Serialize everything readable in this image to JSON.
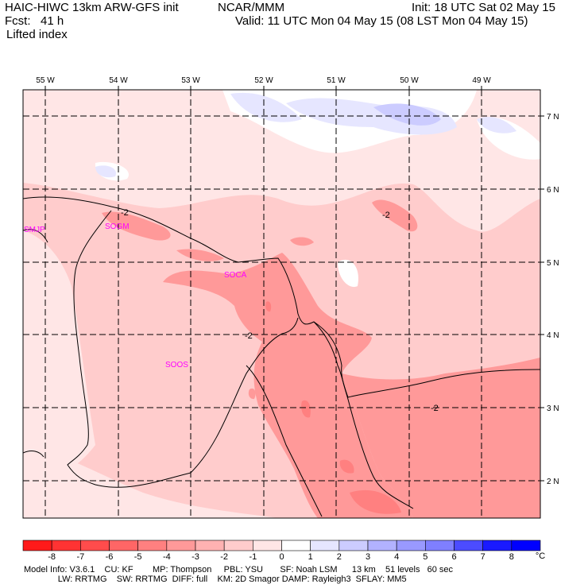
{
  "header": {
    "model": "HAIC-HIWC 13km ARW-GFS init",
    "org": "NCAR/MMM",
    "init": "Init: 18 UTC Sat 02 May 15",
    "fcst": "Fcst:   41 h",
    "valid": "Valid: 11 UTC Mon 04 May 15 (08 LST Mon 04 May 15)",
    "field": "Lifted index"
  },
  "map": {
    "lon_labels": [
      "55 W",
      "54 W",
      "53 W",
      "52 W",
      "51 W",
      "50 W",
      "49 W"
    ],
    "lat_labels": [
      "7 N",
      "6 N",
      "5 N",
      "4 N",
      "3 N",
      "2 N"
    ],
    "stations": [
      "SMJP",
      "SOGM",
      "SOCA",
      "SOOS"
    ],
    "contour_labels": [
      "-2",
      "-2",
      "-2",
      "-2"
    ]
  },
  "colorbar": {
    "values": [
      "-8",
      "-7",
      "-6",
      "-5",
      "-4",
      "-3",
      "-2",
      "-1",
      "0",
      "1",
      "2",
      "3",
      "4",
      "5",
      "6",
      "7",
      "8"
    ],
    "unit": "°C",
    "colors": [
      "#ff1a1a",
      "#ff3333",
      "#ff4c4c",
      "#ff6666",
      "#ff8080",
      "#ff9999",
      "#ffb2b2",
      "#ffcccc",
      "#ffe6e6",
      "#ffffff",
      "#e6e6ff",
      "#ccccff",
      "#b2b2ff",
      "#9999ff",
      "#7f7fff",
      "#4c4cff",
      "#1a1aff",
      "#0000ff"
    ]
  },
  "footer": {
    "line1": "Model Info: V3.6.1    CU: KF        MP: Thompson     PBL: YSU       SF: Noah LSM      13 km    51 levels   60 sec",
    "line2": "              LW: RRTMG    SW: RRTMG  DIFF: full    KM: 2D Smagor DAMP: Rayleigh3  SFLAY: MM5"
  }
}
